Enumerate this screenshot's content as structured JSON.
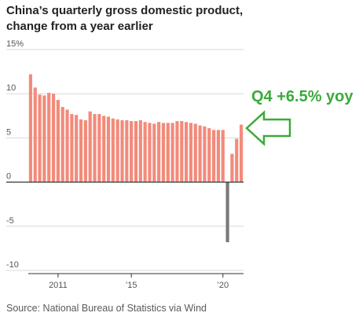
{
  "title_line1": "China’s quarterly gross domestic product,",
  "title_line2": "change from a year earlier",
  "source": "Source: National Bureau of Statistics via Wind",
  "annotation": "Q4 +6.5% yoy",
  "colors": {
    "positive_bar": "#f28b7b",
    "negative_bar": "#7a7a7a",
    "annotation": "#3aaa3a",
    "grid": "#d9d9d9",
    "axis": "#333333"
  },
  "icons": [
    "left-arrow-icon"
  ],
  "chart_data": {
    "type": "bar",
    "title": "China’s quarterly gross domestic product, change from a year earlier",
    "xlabel": "",
    "ylabel": "",
    "ylim": [
      -10,
      15
    ],
    "y_ticks": [
      {
        "value": 15,
        "label": "15%"
      },
      {
        "value": 10,
        "label": "10"
      },
      {
        "value": 5,
        "label": "5"
      },
      {
        "value": 0,
        "label": "0"
      },
      {
        "value": -5,
        "label": "-5"
      },
      {
        "value": -10,
        "label": "-10"
      }
    ],
    "x_ticks": [
      {
        "index": 6,
        "label": "2011"
      },
      {
        "index": 22,
        "label": "’15"
      },
      {
        "index": 42,
        "label": "’20"
      }
    ],
    "grid": true,
    "values": [
      12.2,
      10.7,
      9.9,
      9.8,
      10.1,
      10.0,
      9.3,
      8.5,
      8.2,
      7.7,
      7.6,
      7.1,
      7.0,
      8.0,
      7.7,
      7.7,
      7.5,
      7.4,
      7.2,
      7.1,
      7.0,
      7.0,
      6.9,
      6.9,
      7.0,
      6.8,
      6.7,
      6.6,
      6.8,
      6.7,
      6.7,
      6.7,
      6.9,
      6.9,
      6.8,
      6.7,
      6.6,
      6.4,
      6.3,
      6.1,
      5.9,
      5.9,
      5.9,
      -6.8,
      3.2,
      4.9,
      6.5
    ]
  }
}
